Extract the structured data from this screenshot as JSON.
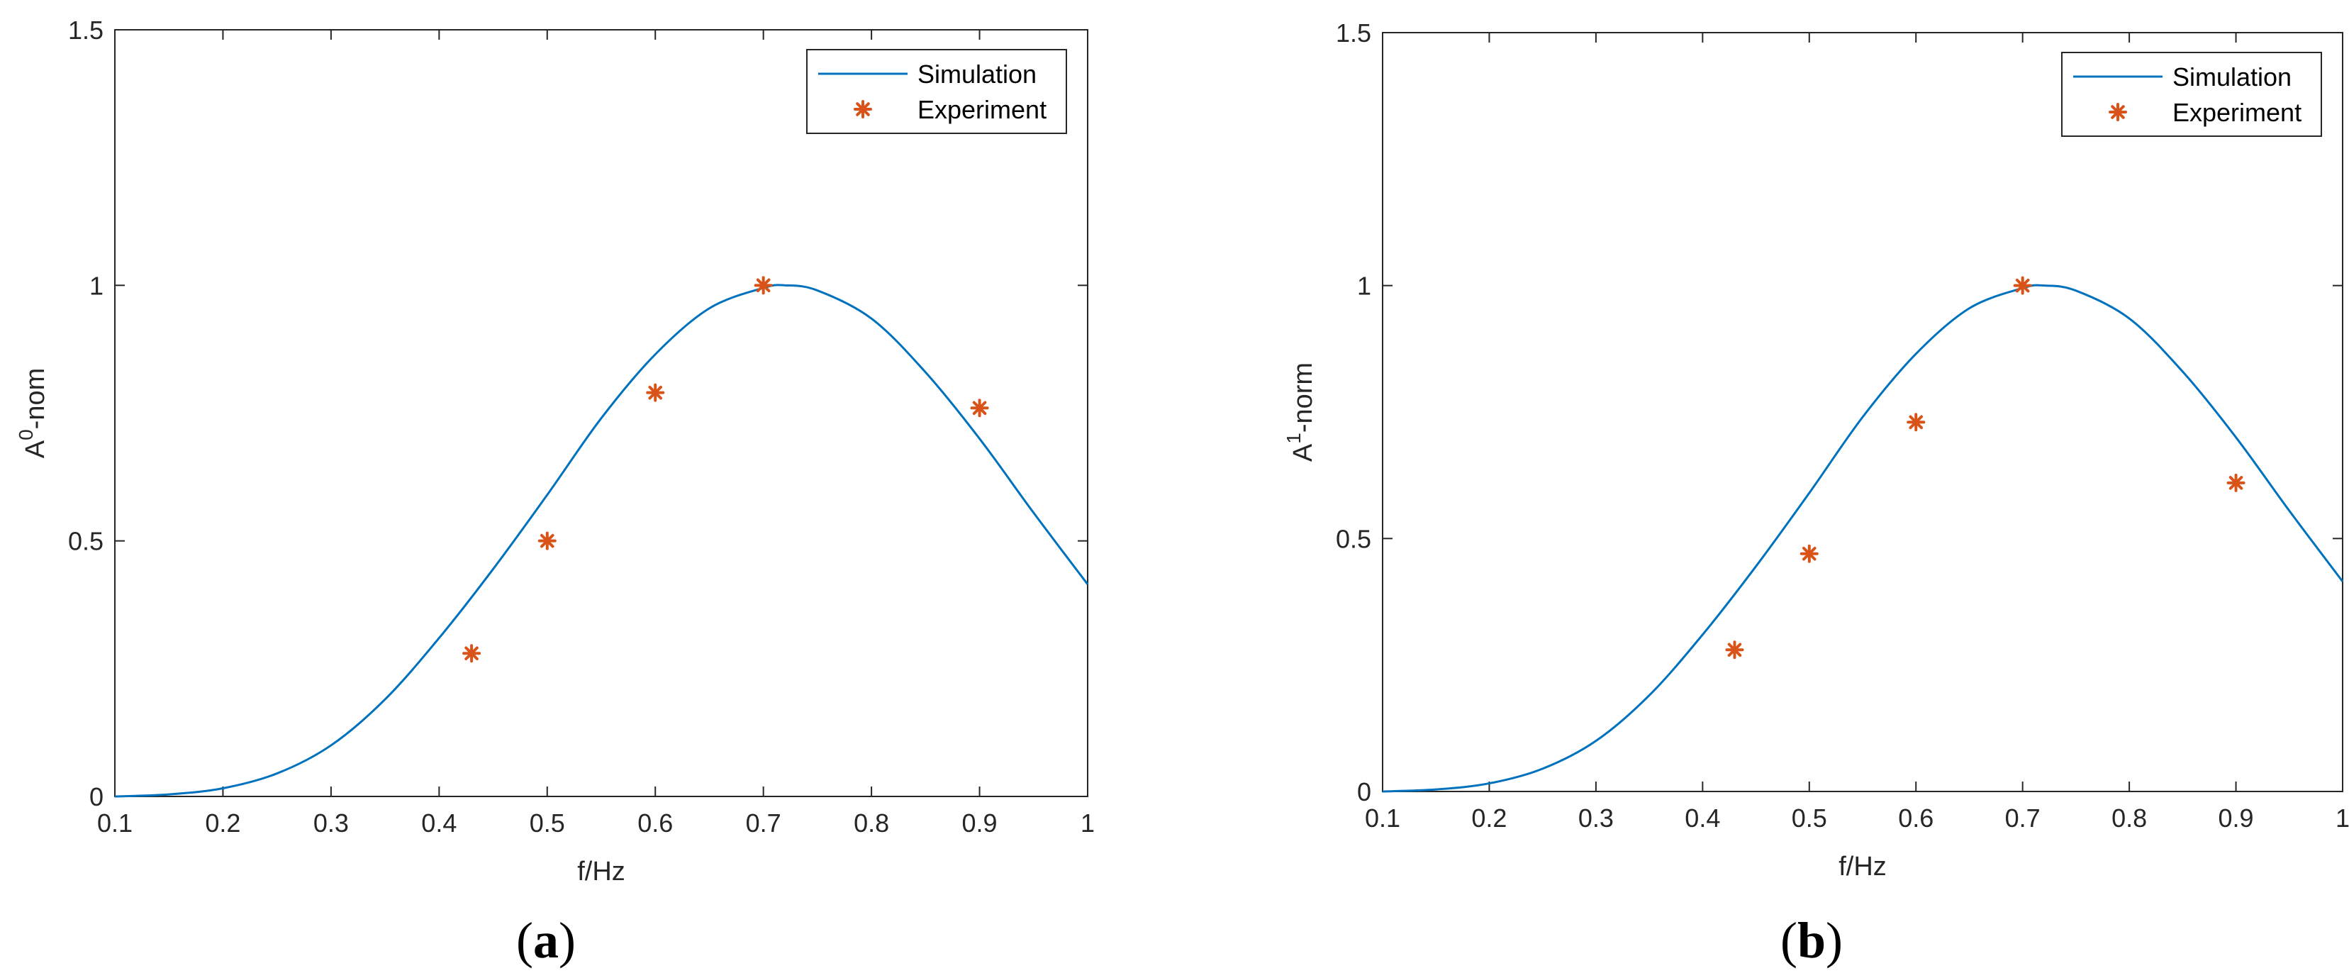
{
  "chart_data": [
    {
      "type": "line",
      "panel_label": "a",
      "xlabel": "f/Hz",
      "ylabel_base": "A",
      "ylabel_sup": "0",
      "ylabel_rest": "-nom",
      "xlim": [
        0.1,
        1.0
      ],
      "ylim": [
        0,
        1.5
      ],
      "xticks": [
        0.1,
        0.2,
        0.3,
        0.4,
        0.5,
        0.6,
        0.7,
        0.8,
        0.9,
        1
      ],
      "xtick_labels": [
        "0.1",
        "0.2",
        "0.3",
        "0.4",
        "0.5",
        "0.6",
        "0.7",
        "0.8",
        "0.9",
        "1"
      ],
      "yticks": [
        0,
        0.5,
        1,
        1.5
      ],
      "ytick_labels": [
        "0",
        "0.5",
        "1",
        "1.5"
      ],
      "legend_position": "top-right",
      "grid": false,
      "series": [
        {
          "name": "Simulation",
          "kind": "line",
          "color": "#0072BD",
          "x": [
            0.1,
            0.15,
            0.2,
            0.25,
            0.3,
            0.35,
            0.4,
            0.45,
            0.5,
            0.55,
            0.6,
            0.65,
            0.7,
            0.72,
            0.75,
            0.8,
            0.85,
            0.9,
            0.95,
            1.0
          ],
          "y": [
            0.0,
            0.004,
            0.016,
            0.045,
            0.1,
            0.19,
            0.31,
            0.445,
            0.59,
            0.74,
            0.865,
            0.955,
            0.995,
            1.0,
            0.99,
            0.935,
            0.83,
            0.7,
            0.555,
            0.415
          ]
        },
        {
          "name": "Experiment",
          "kind": "scatter",
          "color": "#D95319",
          "x": [
            0.43,
            0.5,
            0.6,
            0.7,
            0.9
          ],
          "y": [
            0.28,
            0.5,
            0.79,
            1.0,
            0.76
          ]
        }
      ]
    },
    {
      "type": "line",
      "panel_label": "b",
      "xlabel": "f/Hz",
      "ylabel_base": "A",
      "ylabel_sup": "1",
      "ylabel_rest": "-norm",
      "xlim": [
        0.1,
        1.0
      ],
      "ylim": [
        0,
        1.5
      ],
      "xticks": [
        0.1,
        0.2,
        0.3,
        0.4,
        0.5,
        0.6,
        0.7,
        0.8,
        0.9,
        1
      ],
      "xtick_labels": [
        "0.1",
        "0.2",
        "0.3",
        "0.4",
        "0.5",
        "0.6",
        "0.7",
        "0.8",
        "0.9",
        "1"
      ],
      "yticks": [
        0,
        0.5,
        1,
        1.5
      ],
      "ytick_labels": [
        "0",
        "0.5",
        "1",
        "1.5"
      ],
      "legend_position": "top-right",
      "grid": false,
      "series": [
        {
          "name": "Simulation",
          "kind": "line",
          "color": "#0072BD",
          "x": [
            0.1,
            0.15,
            0.2,
            0.25,
            0.3,
            0.35,
            0.4,
            0.45,
            0.5,
            0.55,
            0.6,
            0.65,
            0.7,
            0.72,
            0.75,
            0.8,
            0.85,
            0.9,
            0.95,
            1.0
          ],
          "y": [
            0.0,
            0.004,
            0.016,
            0.045,
            0.1,
            0.19,
            0.31,
            0.445,
            0.59,
            0.74,
            0.865,
            0.955,
            0.995,
            1.0,
            0.99,
            0.935,
            0.83,
            0.7,
            0.555,
            0.415
          ]
        },
        {
          "name": "Experiment",
          "kind": "scatter",
          "color": "#D95319",
          "x": [
            0.43,
            0.5,
            0.6,
            0.7,
            0.9
          ],
          "y": [
            0.28,
            0.47,
            0.73,
            1.0,
            0.61
          ]
        }
      ]
    }
  ]
}
